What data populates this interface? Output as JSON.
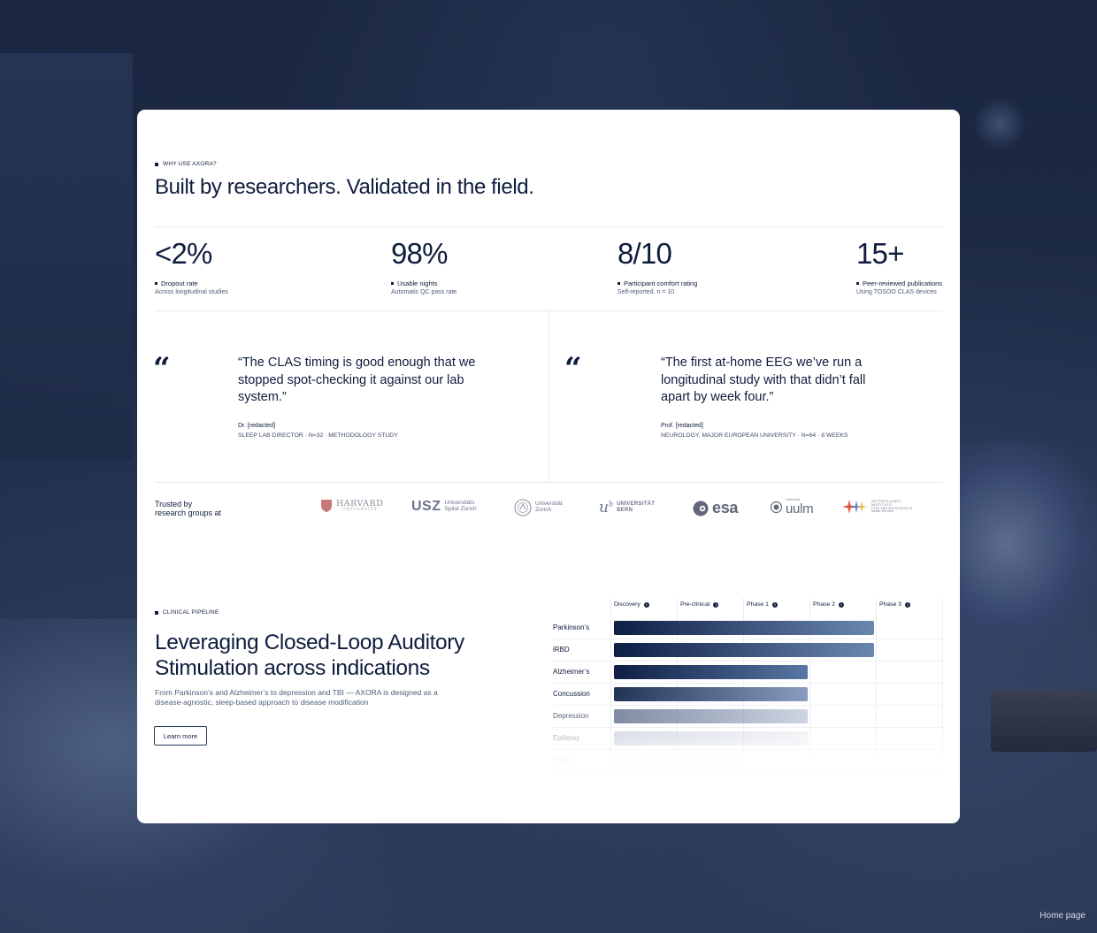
{
  "footer": {
    "label": "Home page"
  },
  "why": {
    "eyebrow": "WHY USE AXORA?",
    "heading": "Built by researchers. Validated in the field."
  },
  "stats": [
    {
      "value": "<2%",
      "label": "Dropout rate",
      "sub": "Across longitudinal studies"
    },
    {
      "value": "98%",
      "label": "Usable nights",
      "sub": "Automatic QC pass rate"
    },
    {
      "value": "8/10",
      "label": "Participant comfort rating",
      "sub": "Self-reported, n = 10"
    },
    {
      "value": "15+",
      "label": "Peer-reviewed publications",
      "sub": "Using TOSOO CLAS devices"
    }
  ],
  "testimonials": [
    {
      "quote": "“The CLAS timing is good enough that we stopped spot-checking it against our lab system.”",
      "name": "Dr. [redacted]",
      "role": "SLEEP LAB DIRECTOR · N=32 · METHODOLOGY STUDY"
    },
    {
      "quote": "“The first at-home EEG we’ve run a longitudinal study with that didn’t fall apart by week four.”",
      "name": "Prof. [redacted]",
      "role": "NEUROLOGY, MAJOR EUROPEAN UNIVERSITY · N=64 · 8 WEEKS"
    }
  ],
  "trusted": {
    "label_line1": "Trusted by",
    "label_line2": "research groups at",
    "logos": {
      "harvard": {
        "name": "HARVARD",
        "sub": "UNIVERSITY"
      },
      "usz": {
        "mark": "USZ",
        "line1": "Universitäts",
        "line2": "Spital Zürich"
      },
      "uzh": {
        "line1": "Universität",
        "line2": "Zürich"
      },
      "bern": {
        "mark": "u",
        "sup": "b",
        "line1": "UNIVERSITÄT",
        "line2": "BERN"
      },
      "esa": {
        "mark": "esa"
      },
      "ulm": {
        "small": "universität",
        "mark": "uulm"
      },
      "nin": {
        "line1": "NETHERLANDS",
        "line2": "INSTITUTE",
        "line3": "FOR NEUROSCIENCE",
        "line4": "Master the mind"
      }
    }
  },
  "pipeline": {
    "eyebrow": "CLINICAL PIPELINE",
    "heading_line1": "Leveraging Closed-Loop Auditory",
    "heading_line2": "Stimulation across indications",
    "description": "From Parkinson’s and Alzheimer’s to depression and TBI — AXORA is designed as a disease-agnostic, sleep-based approach to disease modification",
    "cta": "Learn more",
    "info_glyph": "i",
    "phases": [
      "Discovery",
      "Pre-clinical",
      "Phase 1",
      "Phase 2",
      "Phase 3"
    ],
    "indications": [
      {
        "name": "Parkinson’s",
        "progress_phases": 4
      },
      {
        "name": "iRBD",
        "progress_phases": 4
      },
      {
        "name": "Alzheimer’s",
        "progress_phases": 3
      },
      {
        "name": "Concussion",
        "progress_phases": 3
      },
      {
        "name": "Depression",
        "progress_phases": 3
      },
      {
        "name": "Epilepsy",
        "progress_phases": 3
      },
      {
        "name": "Stroke",
        "progress_phases": 2
      }
    ]
  }
}
